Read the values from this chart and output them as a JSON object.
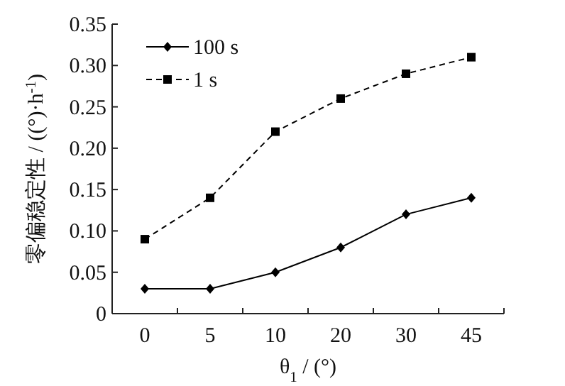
{
  "chart_data": {
    "type": "line",
    "xlabel": "θ$_{1}$ / (°)",
    "ylabel": "零偏稳定性 / ((°)·h$^{-1}$)",
    "categories": [
      "0",
      "5",
      "10",
      "20",
      "30",
      "45"
    ],
    "series": [
      {
        "name": "100 s",
        "color": "#000000",
        "marker": "diamond",
        "line_style": "solid",
        "values": [
          0.03,
          0.03,
          0.05,
          0.08,
          0.12,
          0.14
        ]
      },
      {
        "name": "1 s",
        "color": "#000000",
        "marker": "square",
        "line_style": "dashed",
        "values": [
          0.09,
          0.14,
          0.22,
          0.26,
          0.29,
          0.31
        ]
      }
    ],
    "ylim": [
      0,
      0.35
    ],
    "yticks": [
      0,
      0.05,
      {
        "value": 0.1,
        "label": "0.10"
      },
      0.15,
      {
        "value": 0.2,
        "label": "0.20"
      },
      0.25,
      {
        "value": 0.3,
        "label": "0.30"
      },
      0.35
    ],
    "legend": "top left",
    "grid": false
  }
}
